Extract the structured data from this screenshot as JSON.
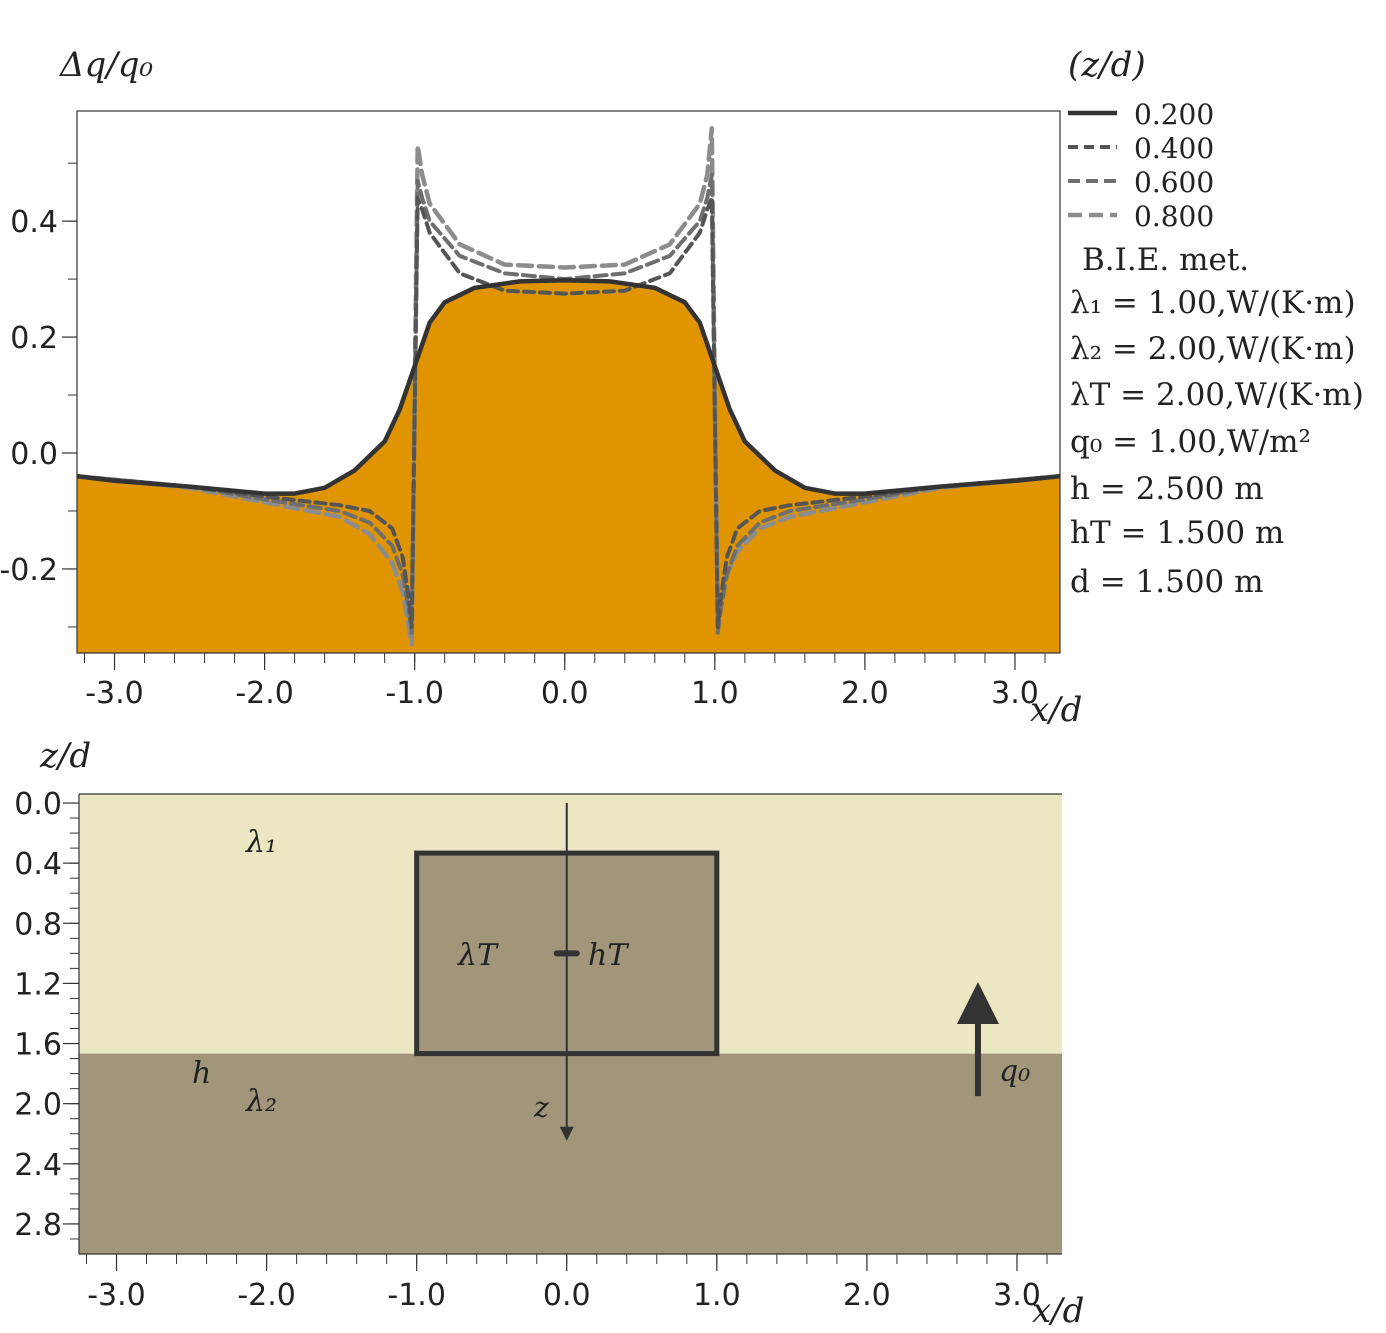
{
  "chart_data": [
    {
      "type": "line",
      "ylabel": "Δq/q₀",
      "xlabel": "x/d",
      "legend_title": "(z/d)",
      "legend_placement": "right",
      "xlim": [
        -3.25,
        3.3
      ],
      "ylim": [
        -0.345,
        0.59
      ],
      "x_ticks": [
        "-3.0",
        "-2.0",
        "-1.0",
        "0.0",
        "1.0",
        "2.0",
        "3.0"
      ],
      "y_ticks": [
        "0.4",
        "0.2",
        "0.0",
        "-0.2"
      ],
      "fill_color": "#E09400",
      "series": [
        {
          "name": "0.200",
          "color": "#333333",
          "dash": "solid",
          "width": 4.5,
          "x": [
            -3.25,
            -3.0,
            -2.5,
            -2.0,
            -1.8,
            -1.6,
            -1.4,
            -1.2,
            -1.1,
            -1.0,
            -0.9,
            -0.8,
            -0.6,
            -0.3,
            0.0,
            0.3,
            0.6,
            0.8,
            0.9,
            1.0,
            1.1,
            1.2,
            1.4,
            1.6,
            1.8,
            2.0,
            2.5,
            3.0,
            3.3
          ],
          "y": [
            -0.04,
            -0.048,
            -0.058,
            -0.07,
            -0.07,
            -0.06,
            -0.03,
            0.02,
            0.075,
            0.15,
            0.225,
            0.26,
            0.285,
            0.296,
            0.298,
            0.296,
            0.285,
            0.26,
            0.225,
            0.15,
            0.075,
            0.02,
            -0.03,
            -0.06,
            -0.07,
            -0.07,
            -0.058,
            -0.048,
            -0.04
          ]
        },
        {
          "name": "0.400",
          "color": "#555555",
          "dash": "10,6",
          "width": 4,
          "x": [
            -3.25,
            -2.5,
            -2.0,
            -1.5,
            -1.3,
            -1.15,
            -1.08,
            -1.04,
            -1.02,
            -1.0,
            -0.98,
            -0.95,
            -0.9,
            -0.7,
            -0.4,
            0.0,
            0.4,
            0.7,
            0.9,
            0.95,
            0.98,
            1.0,
            1.02,
            1.04,
            1.08,
            1.15,
            1.3,
            1.5,
            2.0,
            2.5,
            3.3
          ],
          "y": [
            -0.04,
            -0.058,
            -0.075,
            -0.09,
            -0.1,
            -0.13,
            -0.18,
            -0.25,
            -0.3,
            0.07,
            0.44,
            0.42,
            0.38,
            0.31,
            0.28,
            0.275,
            0.28,
            0.31,
            0.38,
            0.42,
            0.44,
            0.07,
            -0.3,
            -0.25,
            -0.18,
            -0.13,
            -0.1,
            -0.09,
            -0.075,
            -0.058,
            -0.04
          ]
        },
        {
          "name": "0.600",
          "color": "#6e6e6e",
          "dash": "12,6",
          "width": 4,
          "x": [
            -3.25,
            -2.5,
            -2.0,
            -1.5,
            -1.3,
            -1.15,
            -1.08,
            -1.04,
            -1.02,
            -1.0,
            -0.98,
            -0.95,
            -0.9,
            -0.7,
            -0.4,
            0.0,
            0.4,
            0.7,
            0.9,
            0.95,
            0.98,
            1.0,
            1.02,
            1.04,
            1.08,
            1.15,
            1.3,
            1.5,
            2.0,
            2.5,
            3.3
          ],
          "y": [
            -0.04,
            -0.058,
            -0.08,
            -0.1,
            -0.12,
            -0.16,
            -0.21,
            -0.27,
            -0.31,
            0.08,
            0.47,
            0.44,
            0.4,
            0.34,
            0.31,
            0.3,
            0.31,
            0.34,
            0.4,
            0.44,
            0.48,
            0.08,
            -0.31,
            -0.27,
            -0.21,
            -0.16,
            -0.12,
            -0.1,
            -0.08,
            -0.058,
            -0.04
          ]
        },
        {
          "name": "0.800",
          "color": "#8c8c8c",
          "dash": "14,7",
          "width": 4.5,
          "x": [
            -3.25,
            -2.5,
            -2.0,
            -1.5,
            -1.3,
            -1.15,
            -1.08,
            -1.04,
            -1.02,
            -1.0,
            -0.98,
            -0.95,
            -0.9,
            -0.7,
            -0.4,
            0.0,
            0.4,
            0.7,
            0.9,
            0.95,
            0.98,
            1.0,
            1.02,
            1.04,
            1.08,
            1.15,
            1.3,
            1.5,
            2.0,
            2.5,
            3.3
          ],
          "y": [
            -0.04,
            -0.06,
            -0.085,
            -0.11,
            -0.14,
            -0.19,
            -0.24,
            -0.3,
            -0.33,
            0.1,
            0.53,
            0.48,
            0.43,
            0.36,
            0.325,
            0.32,
            0.325,
            0.36,
            0.43,
            0.48,
            0.56,
            0.1,
            -0.29,
            -0.26,
            -0.21,
            -0.17,
            -0.13,
            -0.11,
            -0.085,
            -0.06,
            -0.04
          ]
        }
      ],
      "params_text": [
        "B.I.E. met.",
        "λ₁ = 1.00,W/(K·m)",
        "λ₂ = 2.00,W/(K·m)",
        "λT = 2.00,W/(K·m)",
        "q₀ = 1.00,W/m²",
        "h = 2.500 m",
        "hT = 1.500 m",
        "d = 1.500 m"
      ]
    },
    {
      "type": "diagram",
      "ylabel": "z/d",
      "xlabel": "x/d",
      "xlim": [
        -3.25,
        3.3
      ],
      "ylim": [
        3.0,
        -0.06
      ],
      "x_ticks": [
        "-3.0",
        "-2.0",
        "-1.0",
        "0.0",
        "1.0",
        "2.0",
        "3.0"
      ],
      "y_ticks": [
        "0.0",
        "0.4",
        "0.8",
        "1.2",
        "1.6",
        "2.0",
        "2.4",
        "2.8"
      ],
      "layer_boundary_z": 1.667,
      "tunnel": {
        "x_min": -1.0,
        "x_max": 1.0,
        "z_top": 0.333,
        "z_bottom": 1.667
      },
      "colors": {
        "upper_layer": "#EAE7C2",
        "lower_layer": "#A1957A",
        "tunnel": "#A1957A",
        "outline": "#333333"
      },
      "labels": {
        "lambda1": "λ₁",
        "lambda2": "λ₂",
        "lambdaT": "λT",
        "h": "h",
        "hT": "hT",
        "z": "z",
        "q0": "q₀"
      }
    }
  ]
}
